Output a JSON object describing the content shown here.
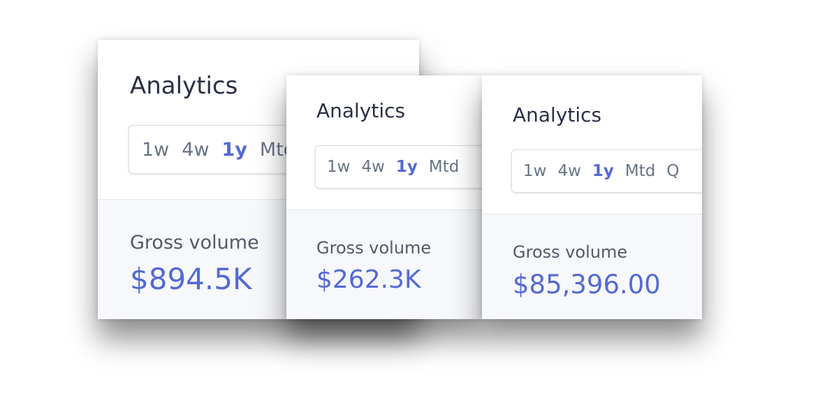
{
  "cards": [
    {
      "title": "Analytics",
      "tabs": [
        "1w",
        "4w",
        "1y",
        "Mtd"
      ],
      "active_tab": "1y",
      "metric": "Gross volume",
      "value": "$894.5K"
    },
    {
      "title": "Analytics",
      "tabs": [
        "1w",
        "4w",
        "1y",
        "Mtd"
      ],
      "active_tab": "1y",
      "metric": "Gross volume",
      "value": "$262.3K"
    },
    {
      "title": "Analytics",
      "tabs": [
        "1w",
        "4w",
        "1y",
        "Mtd",
        "Q"
      ],
      "active_tab": "1y",
      "metric": "Gross volume",
      "value": "$85,396.00"
    }
  ]
}
